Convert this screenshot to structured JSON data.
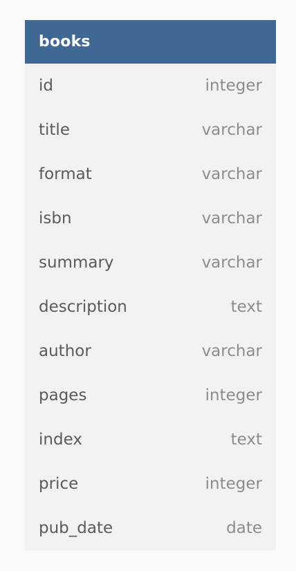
{
  "table": {
    "name": "books",
    "header_color": "#3f6895",
    "columns": [
      {
        "name": "id",
        "type": "integer"
      },
      {
        "name": "title",
        "type": "varchar"
      },
      {
        "name": "format",
        "type": "varchar"
      },
      {
        "name": "isbn",
        "type": "varchar"
      },
      {
        "name": "summary",
        "type": "varchar"
      },
      {
        "name": "description",
        "type": "text"
      },
      {
        "name": "author",
        "type": "varchar"
      },
      {
        "name": "pages",
        "type": "integer"
      },
      {
        "name": "index",
        "type": "text"
      },
      {
        "name": "price",
        "type": "integer"
      },
      {
        "name": "pub_date",
        "type": "date"
      }
    ]
  }
}
